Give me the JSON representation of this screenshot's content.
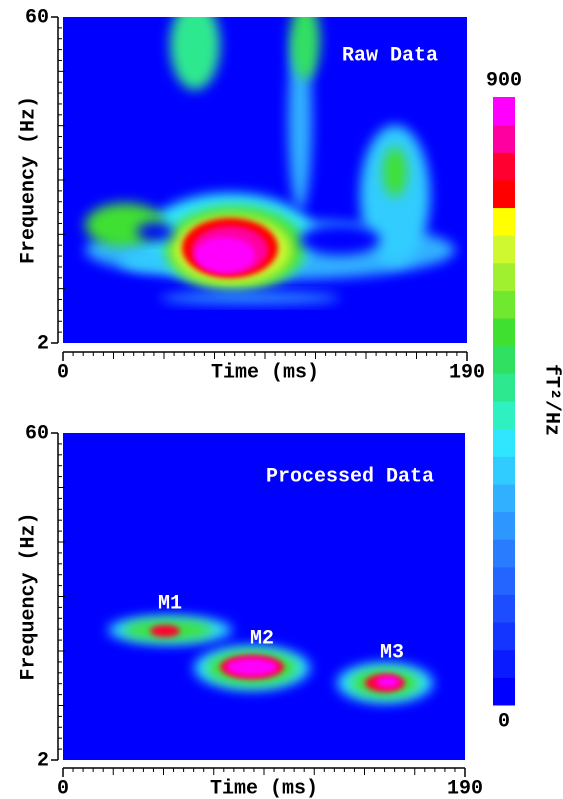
{
  "chart_data": [
    {
      "type": "heatmap",
      "title": "Raw Data",
      "x_label": "Time (ms)",
      "y_label": "Frequency (Hz)",
      "xlim": [
        0,
        190
      ],
      "xticks": [
        0,
        190
      ],
      "ylim": [
        2,
        60
      ],
      "yticks": [
        2,
        60
      ],
      "background": "#0000ff"
    },
    {
      "type": "heatmap",
      "title": "Processed Data",
      "x_label": "Time (ms)",
      "y_label": "Frequency (Hz)",
      "xlim": [
        0,
        190
      ],
      "xticks": [
        0,
        190
      ],
      "ylim": [
        2,
        60
      ],
      "yticks": [
        2,
        60
      ],
      "background": "#0000ff",
      "annotations": [
        "M1",
        "M2",
        "M3"
      ]
    }
  ],
  "colorbar": {
    "label": "fT²/Hz",
    "range": [
      0,
      900
    ],
    "ticks": [
      0,
      900
    ],
    "colors": [
      "#0000ff",
      "#0a1cff",
      "#1434ff",
      "#1e4cff",
      "#2464ff",
      "#2a7cff",
      "#2e96ff",
      "#30b0ff",
      "#30ccff",
      "#30e6ff",
      "#2ef0c0",
      "#2ee890",
      "#30e060",
      "#40e030",
      "#70e830",
      "#a0f030",
      "#d0f830",
      "#ffff00",
      "#ff0000",
      "#ff0030",
      "#ff00a0",
      "#ff00ff"
    ]
  }
}
